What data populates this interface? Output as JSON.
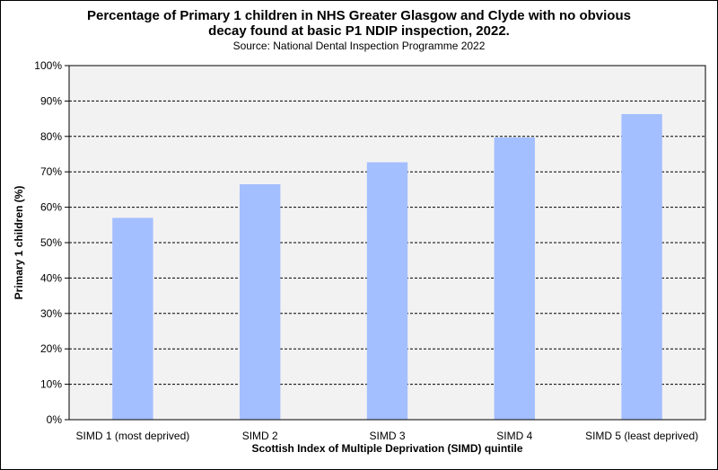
{
  "chart_data": {
    "type": "bar",
    "title_line1": "Percentage of Primary 1 children in NHS Greater Glasgow and Clyde with no obvious",
    "title_line2": "decay found at basic P1 NDIP inspection, 2022.",
    "subtitle": "Source: National Dental Inspection Programme 2022",
    "xlabel": "Scottish Index of Multiple Deprivation (SIMD) quintile",
    "ylabel": "Primary 1 children (%)",
    "categories": [
      "SIMD 1 (most deprived)",
      "SIMD 2",
      "SIMD 3",
      "SIMD 4",
      "SIMD 5 (least deprived)"
    ],
    "values": [
      57.0,
      66.5,
      72.7,
      79.7,
      86.3
    ],
    "ylim": [
      0,
      100
    ],
    "yticks": [
      0,
      10,
      20,
      30,
      40,
      50,
      60,
      70,
      80,
      90,
      100
    ],
    "ytick_suffix": "%",
    "grid": "horizontal dashed",
    "bar_color": "#a4bfff",
    "plot_background": "#f2f2f2"
  }
}
